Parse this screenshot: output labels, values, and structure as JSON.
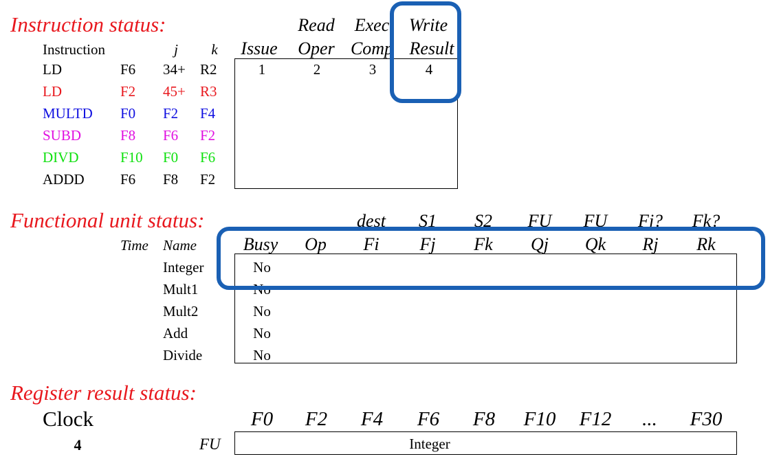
{
  "instruction_status": {
    "title": "Instruction status:",
    "header_top": [
      "Read",
      "Exec",
      "Write"
    ],
    "header": [
      "Instruction",
      "j",
      "k",
      "Issue",
      "Oper",
      "Comp",
      "Result"
    ],
    "rows": [
      {
        "op": "LD",
        "dst": "F6",
        "j": "34+",
        "k": "R2",
        "issue": "1",
        "read": "2",
        "exec": "3",
        "write": "4",
        "color": "#000000"
      },
      {
        "op": "LD",
        "dst": "F2",
        "j": "45+",
        "k": "R3",
        "issue": "",
        "read": "",
        "exec": "",
        "write": "",
        "color": "#e8181e"
      },
      {
        "op": "MULTD",
        "dst": "F0",
        "j": "F2",
        "k": "F4",
        "issue": "",
        "read": "",
        "exec": "",
        "write": "",
        "color": "#1010e0"
      },
      {
        "op": "SUBD",
        "dst": "F8",
        "j": "F6",
        "k": "F2",
        "issue": "",
        "read": "",
        "exec": "",
        "write": "",
        "color": "#e010e0"
      },
      {
        "op": "DIVD",
        "dst": "F10",
        "j": "F0",
        "k": "F6",
        "issue": "",
        "read": "",
        "exec": "",
        "write": "",
        "color": "#10e010"
      },
      {
        "op": "ADDD",
        "dst": "F6",
        "j": "F8",
        "k": "F2",
        "issue": "",
        "read": "",
        "exec": "",
        "write": "",
        "color": "#000000"
      }
    ]
  },
  "functional_unit_status": {
    "title": "Functional unit status:",
    "header_top": [
      "dest",
      "S1",
      "S2",
      "FU",
      "FU",
      "Fj?",
      "Fk?"
    ],
    "header_left": [
      "Time",
      "Name"
    ],
    "header": [
      "Busy",
      "Op",
      "Fi",
      "Fj",
      "Fk",
      "Qj",
      "Qk",
      "Rj",
      "Rk"
    ],
    "units": [
      {
        "name": "Integer",
        "busy": "No"
      },
      {
        "name": "Mult1",
        "busy": "No"
      },
      {
        "name": "Mult2",
        "busy": "No"
      },
      {
        "name": "Add",
        "busy": "No"
      },
      {
        "name": "Divide",
        "busy": "No"
      }
    ]
  },
  "register_result_status": {
    "title": "Register result status:",
    "clock_label": "Clock",
    "clock_value": "4",
    "fu_label": "FU",
    "registers": [
      "F0",
      "F2",
      "F4",
      "F6",
      "F8",
      "F10",
      "F12",
      "...",
      "F30"
    ],
    "fu_value": "Integer"
  },
  "colors": {
    "section_title": "#e8181e",
    "highlight": "#1a60b4"
  }
}
